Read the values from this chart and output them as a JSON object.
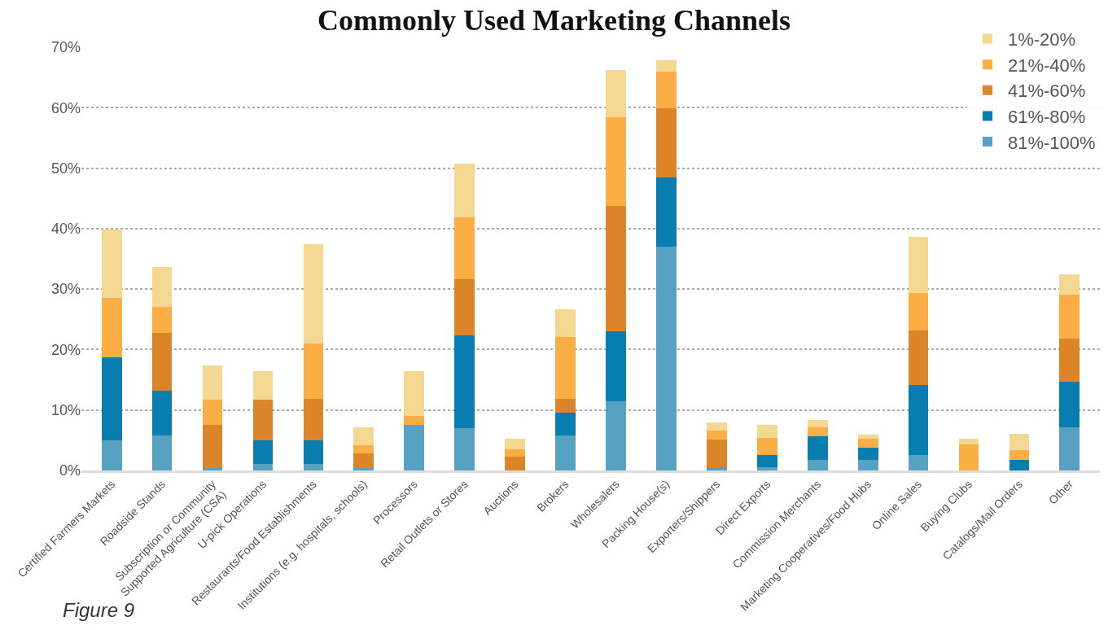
{
  "chart_data": {
    "type": "bar",
    "title": "Commonly Used Marketing Channels",
    "stacked": true,
    "categories": [
      "Certified Farmers Markets",
      "Roadside Stands",
      "Subscription or Community\nSupported Agriculture (CSA)",
      "U-pick Operations",
      "Restaurants/Food Establishments",
      "Institutions (e.g. hospitals, schools)",
      "Processors",
      "Retail Outlets or Stores",
      "Auctions",
      "Brokers",
      "Wholesalers",
      "Packing House(s)",
      "Exporters/Shippers",
      "Direct Exports",
      "Commission Merchants",
      "Marketing Cooperatives/Food Hubs",
      "Online Sales",
      "Buying Clubs",
      "Catalogs/Mail Orders",
      "Other"
    ],
    "series": [
      {
        "name": "81%-100%",
        "color": "#57a2c2",
        "values": [
          5.0,
          5.8,
          0.4,
          1.1,
          1.1,
          0.4,
          7.6,
          7.0,
          0,
          5.8,
          11.5,
          37.0,
          0.6,
          0.6,
          1.8,
          1.8,
          2.6,
          0,
          0,
          7.1
        ]
      },
      {
        "name": "61%-80%",
        "color": "#087db0",
        "values": [
          13.7,
          7.4,
          0,
          3.9,
          3.9,
          0,
          0,
          15.4,
          0,
          3.7,
          11.5,
          11.4,
          0,
          2.0,
          3.8,
          2.0,
          11.6,
          0,
          1.8,
          7.6
        ]
      },
      {
        "name": "41%-60%",
        "color": "#db8428",
        "values": [
          0,
          9.5,
          7.2,
          6.7,
          6.8,
          2.4,
          0,
          9.2,
          2.3,
          2.3,
          20.8,
          11.5,
          4.5,
          0,
          0,
          0,
          9.0,
          0,
          0,
          7.1
        ]
      },
      {
        "name": "21%-40%",
        "color": "#fbae43",
        "values": [
          9.9,
          4.4,
          4.1,
          0,
          9.2,
          1.4,
          1.4,
          10.3,
          1.2,
          10.3,
          14.6,
          6.0,
          1.5,
          2.8,
          1.5,
          1.5,
          6.1,
          4.3,
          1.5,
          7.3
        ]
      },
      {
        "name": "1%-20%",
        "color": "#f4d891",
        "values": [
          11.2,
          6.6,
          5.6,
          4.7,
          16.4,
          2.9,
          7.4,
          8.8,
          1.7,
          4.5,
          7.8,
          2.0,
          1.3,
          2.2,
          1.3,
          0.6,
          9.4,
          1.0,
          2.8,
          3.3
        ]
      }
    ],
    "ylim": [
      0,
      70
    ],
    "yticks": [
      {
        "value": 0,
        "label": "0%"
      },
      {
        "value": 10,
        "label": "10%"
      },
      {
        "value": 20,
        "label": "20%"
      },
      {
        "value": 30,
        "label": "30%"
      },
      {
        "value": 40,
        "label": "40%"
      },
      {
        "value": 50,
        "label": "50%"
      },
      {
        "value": 60,
        "label": "60%"
      },
      {
        "value": 70,
        "label": "70%"
      }
    ],
    "grid": "y",
    "legend": "top right",
    "annotations": [
      "Figure 9"
    ]
  }
}
